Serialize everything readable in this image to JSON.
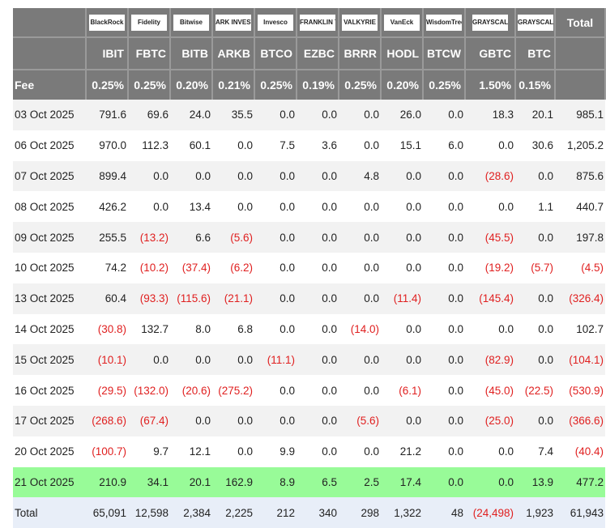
{
  "columns": [
    {
      "ticker": "IBIT",
      "issuer": "BlackRock",
      "fee": "0.25%"
    },
    {
      "ticker": "FBTC",
      "issuer": "Fidelity",
      "fee": "0.25%"
    },
    {
      "ticker": "BITB",
      "issuer": "Bitwise",
      "fee": "0.20%"
    },
    {
      "ticker": "ARKB",
      "issuer": "ARK INVEST",
      "fee": "0.21%"
    },
    {
      "ticker": "BTCO",
      "issuer": "Invesco",
      "fee": "0.25%"
    },
    {
      "ticker": "EZBC",
      "issuer": "FRANKLIN TEMPLETON",
      "fee": "0.19%"
    },
    {
      "ticker": "BRRR",
      "issuer": "VALKYRIE",
      "fee": "0.25%"
    },
    {
      "ticker": "HODL",
      "issuer": "VanEck",
      "fee": "0.20%"
    },
    {
      "ticker": "BTCW",
      "issuer": "WisdomTree",
      "fee": "0.25%"
    },
    {
      "ticker": "GBTC",
      "issuer": "GRAYSCALE",
      "fee": "1.50%"
    },
    {
      "ticker": "BTC",
      "issuer": "GRAYSCALE",
      "fee": "0.15%"
    }
  ],
  "total_label": "Total",
  "fee_label": "Fee",
  "highlight_color": "#98fb98",
  "negative_color": "#e02020",
  "rows": [
    {
      "date": "03 Oct 2025",
      "values": [
        "791.6",
        "69.6",
        "24.0",
        "35.5",
        "0.0",
        "0.0",
        "0.0",
        "26.0",
        "0.0",
        "18.3",
        "20.1"
      ],
      "total": "985.1"
    },
    {
      "date": "06 Oct 2025",
      "values": [
        "970.0",
        "112.3",
        "60.1",
        "0.0",
        "7.5",
        "3.6",
        "0.0",
        "15.1",
        "6.0",
        "0.0",
        "30.6"
      ],
      "total": "1,205.2"
    },
    {
      "date": "07 Oct 2025",
      "values": [
        "899.4",
        "0.0",
        "0.0",
        "0.0",
        "0.0",
        "0.0",
        "4.8",
        "0.0",
        "0.0",
        "(28.6)",
        "0.0"
      ],
      "total": "875.6"
    },
    {
      "date": "08 Oct 2025",
      "values": [
        "426.2",
        "0.0",
        "13.4",
        "0.0",
        "0.0",
        "0.0",
        "0.0",
        "0.0",
        "0.0",
        "0.0",
        "1.1"
      ],
      "total": "440.7"
    },
    {
      "date": "09 Oct 2025",
      "values": [
        "255.5",
        "(13.2)",
        "6.6",
        "(5.6)",
        "0.0",
        "0.0",
        "0.0",
        "0.0",
        "0.0",
        "(45.5)",
        "0.0"
      ],
      "total": "197.8"
    },
    {
      "date": "10 Oct 2025",
      "values": [
        "74.2",
        "(10.2)",
        "(37.4)",
        "(6.2)",
        "0.0",
        "0.0",
        "0.0",
        "0.0",
        "0.0",
        "(19.2)",
        "(5.7)"
      ],
      "total": "(4.5)"
    },
    {
      "date": "13 Oct 2025",
      "values": [
        "60.4",
        "(93.3)",
        "(115.6)",
        "(21.1)",
        "0.0",
        "0.0",
        "0.0",
        "(11.4)",
        "0.0",
        "(145.4)",
        "0.0"
      ],
      "total": "(326.4)"
    },
    {
      "date": "14 Oct 2025",
      "values": [
        "(30.8)",
        "132.7",
        "8.0",
        "6.8",
        "0.0",
        "0.0",
        "(14.0)",
        "0.0",
        "0.0",
        "0.0",
        "0.0"
      ],
      "total": "102.7"
    },
    {
      "date": "15 Oct 2025",
      "values": [
        "(10.1)",
        "0.0",
        "0.0",
        "0.0",
        "(11.1)",
        "0.0",
        "0.0",
        "0.0",
        "0.0",
        "(82.9)",
        "0.0"
      ],
      "total": "(104.1)"
    },
    {
      "date": "16 Oct 2025",
      "values": [
        "(29.5)",
        "(132.0)",
        "(20.6)",
        "(275.2)",
        "0.0",
        "0.0",
        "0.0",
        "(6.1)",
        "0.0",
        "(45.0)",
        "(22.5)"
      ],
      "total": "(530.9)"
    },
    {
      "date": "17 Oct 2025",
      "values": [
        "(268.6)",
        "(67.4)",
        "0.0",
        "0.0",
        "0.0",
        "0.0",
        "(5.6)",
        "0.0",
        "0.0",
        "(25.0)",
        "0.0"
      ],
      "total": "(366.6)"
    },
    {
      "date": "20 Oct 2025",
      "values": [
        "(100.7)",
        "9.7",
        "12.1",
        "0.0",
        "9.9",
        "0.0",
        "0.0",
        "21.2",
        "0.0",
        "0.0",
        "7.4"
      ],
      "total": "(40.4)"
    },
    {
      "date": "21 Oct 2025",
      "values": [
        "210.9",
        "34.1",
        "20.1",
        "162.9",
        "8.9",
        "6.5",
        "2.5",
        "17.4",
        "0.0",
        "0.0",
        "13.9"
      ],
      "total": "477.2",
      "highlight": true
    }
  ],
  "totals_row": {
    "label": "Total",
    "values": [
      "65,091",
      "12,598",
      "2,384",
      "2,225",
      "212",
      "340",
      "298",
      "1,322",
      "48",
      "(24,498)",
      "1,923"
    ],
    "total": "61,943"
  }
}
